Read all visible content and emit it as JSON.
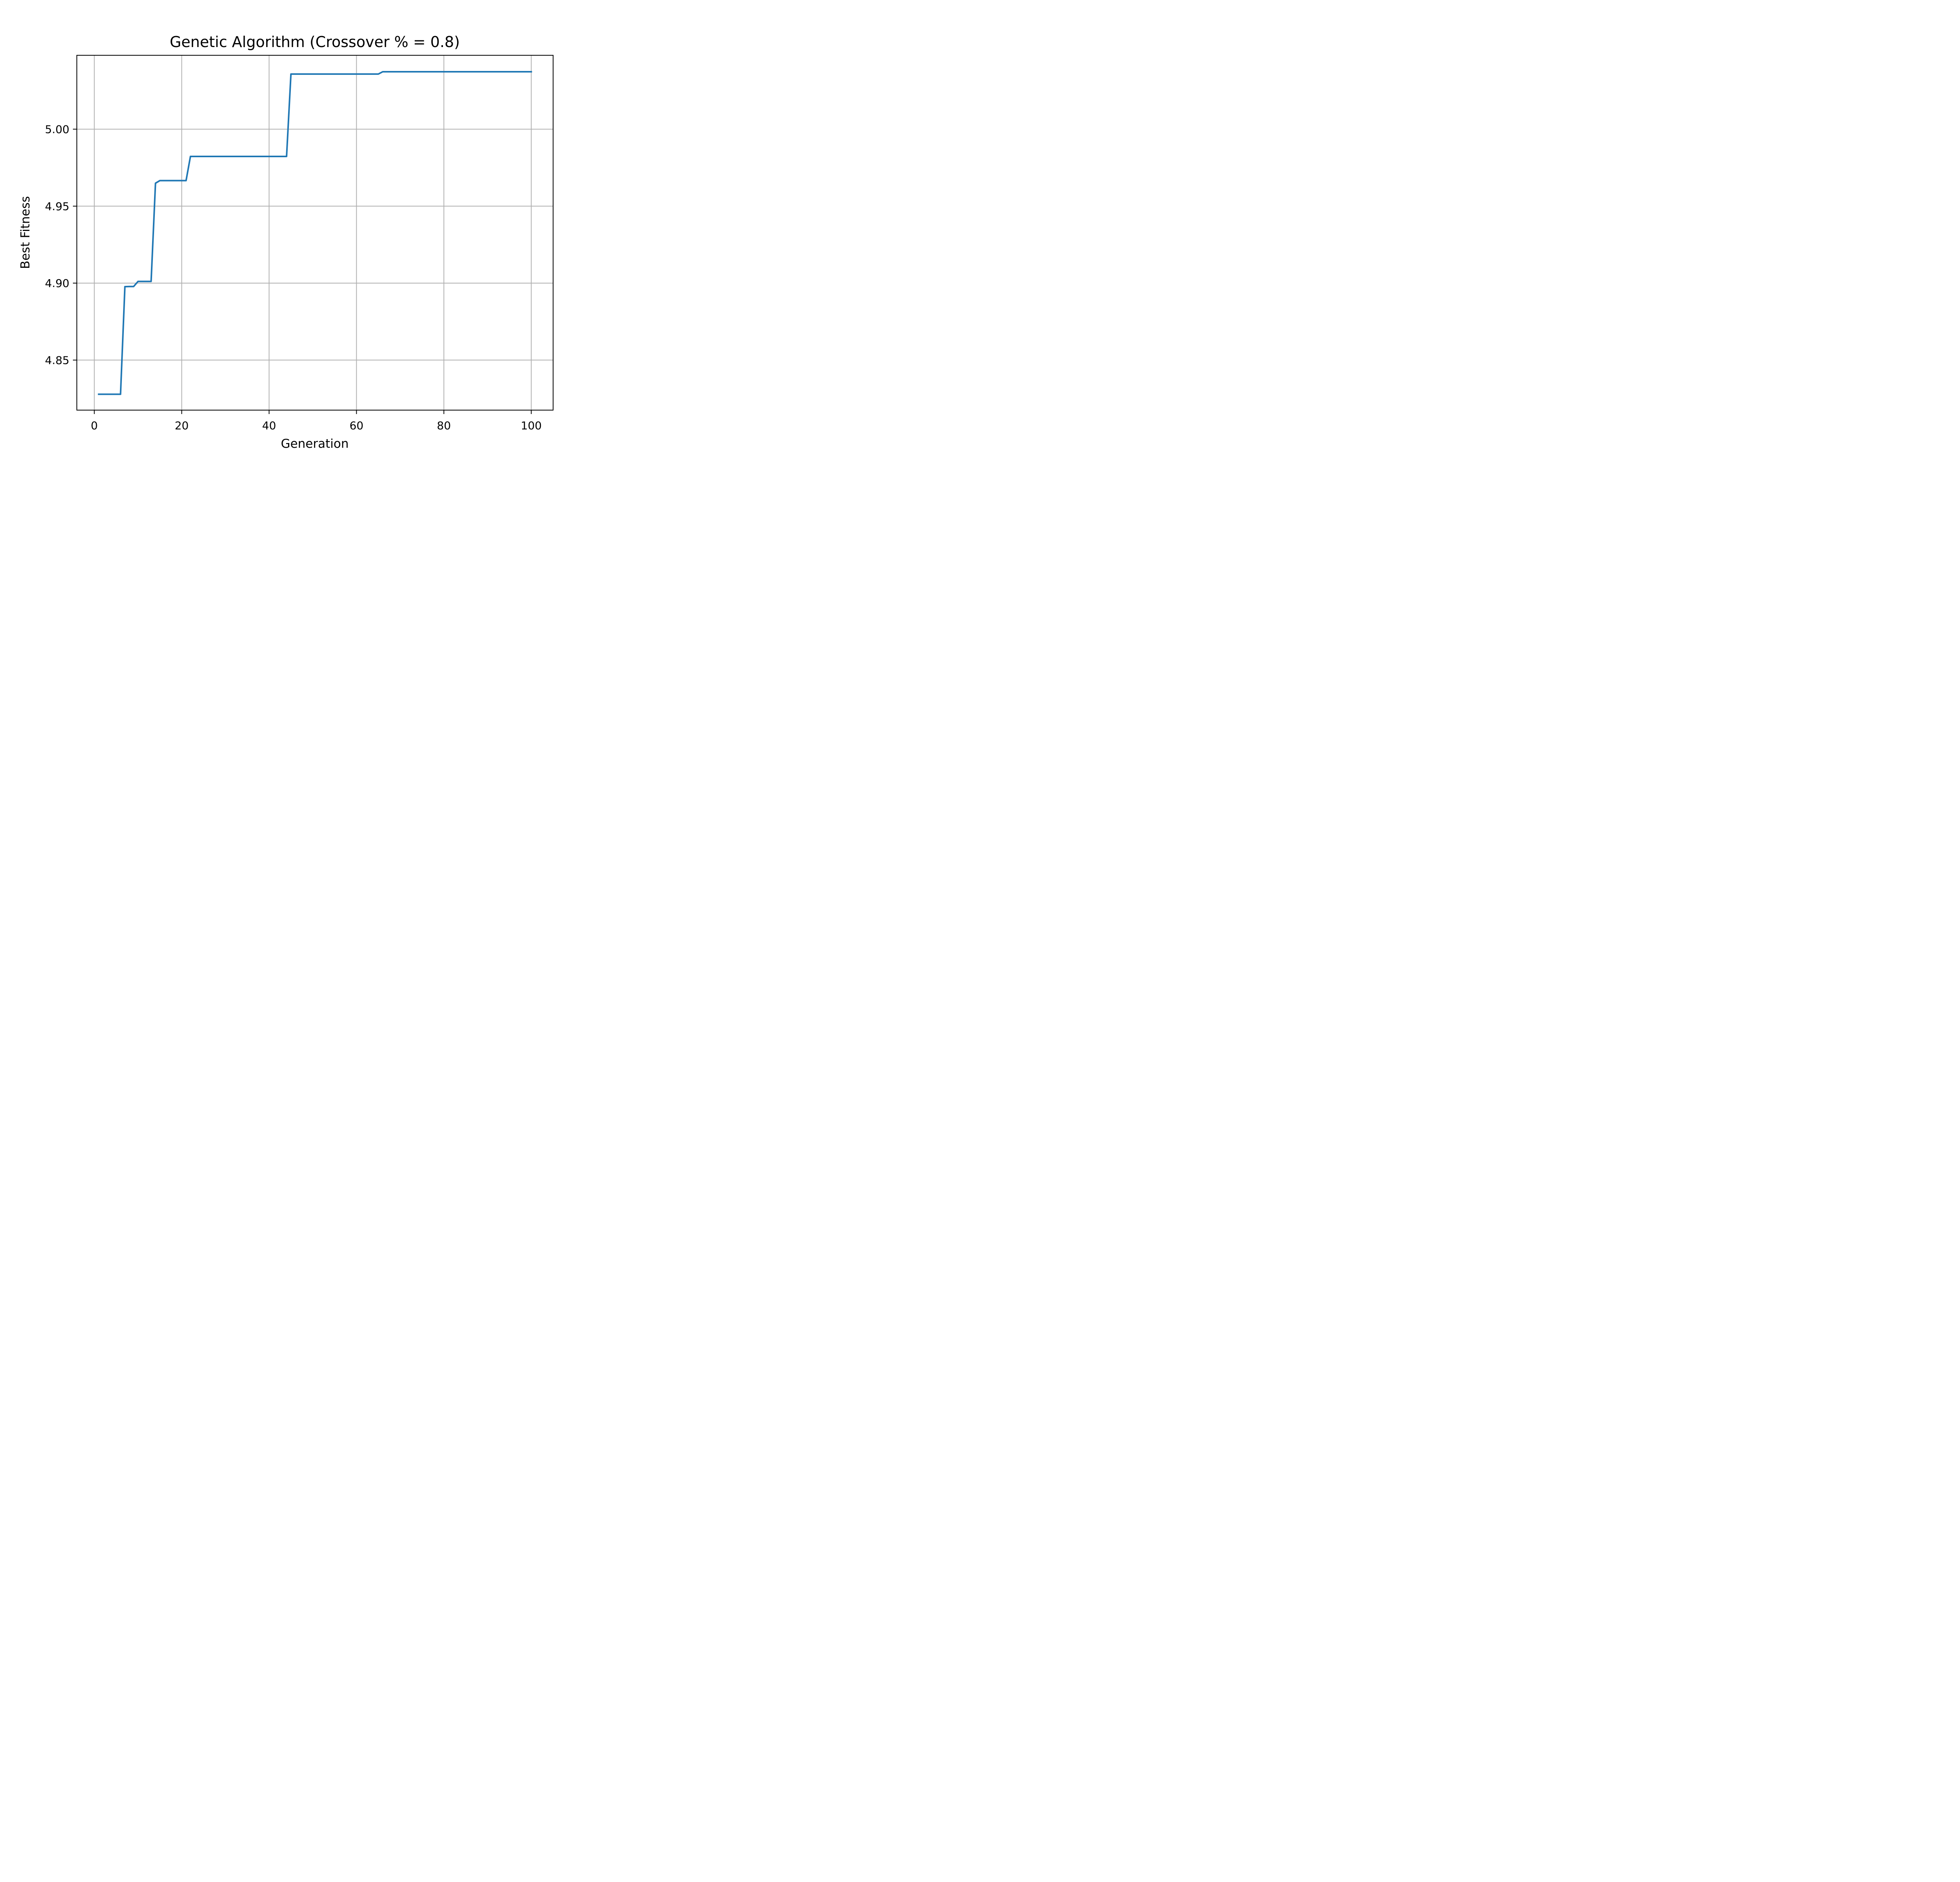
{
  "chart_data": {
    "type": "line",
    "title": "Genetic Algorithm (Crossover % = 0.8)",
    "xlabel": "Generation",
    "ylabel": "Best Fitness",
    "xlim": [
      -4,
      105
    ],
    "ylim": [
      4.8175,
      5.048
    ],
    "xticks": [
      0,
      20,
      40,
      60,
      80,
      100
    ],
    "xtick_labels": [
      "0",
      "20",
      "40",
      "60",
      "80",
      "100"
    ],
    "yticks": [
      4.85,
      4.9,
      4.95,
      5.0
    ],
    "ytick_labels": [
      "4.85",
      "4.90",
      "4.95",
      "5.00"
    ],
    "grid": true,
    "legend": "none",
    "colors": {
      "line": "#1f77b4",
      "grid": "#b0b0b0",
      "axes": "#000000"
    },
    "series": [
      {
        "x": [
          1,
          2,
          3,
          4,
          5,
          6,
          7,
          8,
          9,
          10,
          11,
          12,
          13,
          14,
          15,
          16,
          17,
          18,
          19,
          20,
          21,
          22,
          23,
          24,
          25,
          26,
          27,
          28,
          29,
          30,
          31,
          32,
          33,
          34,
          35,
          36,
          37,
          38,
          39,
          40,
          41,
          42,
          43,
          44,
          45,
          46,
          47,
          48,
          49,
          50,
          51,
          52,
          53,
          54,
          55,
          56,
          57,
          58,
          59,
          60,
          61,
          62,
          63,
          64,
          65,
          66,
          67,
          68,
          69,
          70,
          71,
          72,
          73,
          74,
          75,
          76,
          77,
          78,
          79,
          80,
          81,
          82,
          83,
          84,
          85,
          86,
          87,
          88,
          89,
          90,
          91,
          92,
          93,
          94,
          95,
          96,
          97,
          98,
          99,
          100
        ],
        "y": [
          4.8278,
          4.8278,
          4.8278,
          4.8278,
          4.8278,
          4.8278,
          4.8977,
          4.8978,
          4.8978,
          4.9011,
          4.9011,
          4.9011,
          4.9011,
          4.9649,
          4.9666,
          4.9666,
          4.9666,
          4.9666,
          4.9666,
          4.9666,
          4.9666,
          4.9823,
          4.9823,
          4.9823,
          4.9823,
          4.9823,
          4.9823,
          4.9823,
          4.9823,
          4.9823,
          4.9823,
          4.9823,
          4.9823,
          4.9823,
          4.9823,
          4.9823,
          4.9823,
          4.9823,
          4.9823,
          4.9823,
          4.9823,
          4.9823,
          4.9823,
          4.9823,
          5.0358,
          5.0358,
          5.0358,
          5.0358,
          5.0358,
          5.0358,
          5.0358,
          5.0358,
          5.0358,
          5.0358,
          5.0358,
          5.0358,
          5.0358,
          5.0358,
          5.0358,
          5.0358,
          5.0358,
          5.0358,
          5.0358,
          5.0358,
          5.0358,
          5.0373,
          5.0373,
          5.0373,
          5.0373,
          5.0373,
          5.0373,
          5.0373,
          5.0373,
          5.0373,
          5.0373,
          5.0373,
          5.0373,
          5.0373,
          5.0373,
          5.0373,
          5.0373,
          5.0373,
          5.0373,
          5.0373,
          5.0373,
          5.0373,
          5.0373,
          5.0373,
          5.0373,
          5.0373,
          5.0373,
          5.0373,
          5.0373,
          5.0373,
          5.0373,
          5.0373,
          5.0373,
          5.0373,
          5.0373,
          5.0373
        ]
      }
    ]
  }
}
